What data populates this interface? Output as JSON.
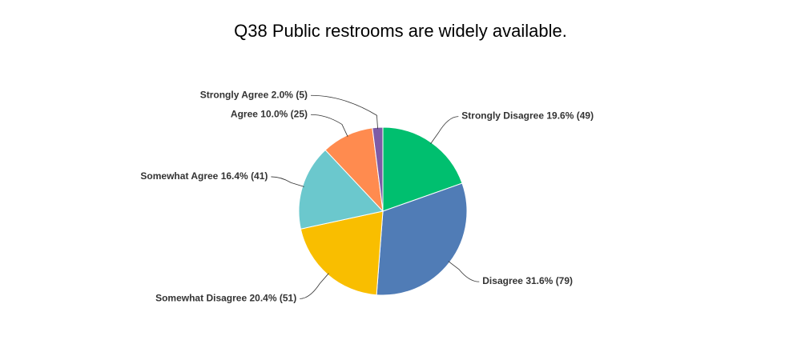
{
  "chart_data": {
    "type": "pie",
    "title": "Q38 Public restrooms are widely available.",
    "categories": [
      "Strongly Disagree",
      "Disagree",
      "Somewhat Disagree",
      "Somewhat Agree",
      "Agree",
      "Strongly Agree"
    ],
    "values": [
      19.6,
      31.6,
      20.4,
      16.4,
      10.0,
      2.0
    ],
    "value_labels": [
      "19.6%",
      "31.6%",
      "20.4%",
      "16.4%",
      "10.0%",
      "2.0%"
    ],
    "count_labels": [
      "(49)",
      "(79)",
      "(51)",
      "(41)",
      "(25)",
      "(5)"
    ],
    "colors": [
      "#00bf6f",
      "#507cb6",
      "#f9be00",
      "#6bc8cd",
      "#ff8b4f",
      "#7d5ba6"
    ]
  }
}
